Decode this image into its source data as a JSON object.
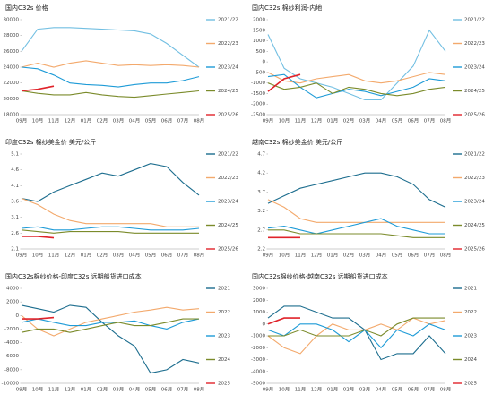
{
  "chart_data": [
    {
      "type": "line",
      "title": "国内C32s 价格",
      "categories": [
        "09月",
        "10月",
        "11月",
        "12月",
        "01月",
        "02月",
        "03月",
        "04月",
        "05月",
        "06月",
        "07月",
        "08月"
      ],
      "ylim": [
        18000,
        30000
      ],
      "yticks": [
        18000,
        20000,
        22000,
        24000,
        26000,
        28000,
        30000
      ],
      "series": [
        {
          "name": "2021/22",
          "color": "#72bfe2",
          "values": [
            26000,
            28800,
            29000,
            29000,
            28900,
            28800,
            28700,
            28600,
            28200,
            27000,
            25500,
            24000
          ]
        },
        {
          "name": "2022/23",
          "color": "#f3a96c",
          "values": [
            24000,
            24500,
            24000,
            24500,
            24800,
            24500,
            24200,
            24300,
            24200,
            24300,
            24200,
            24000
          ]
        },
        {
          "name": "2023/24",
          "color": "#1e9bd7",
          "values": [
            24000,
            23800,
            23000,
            22000,
            21800,
            21700,
            21500,
            21800,
            22000,
            22000,
            22300,
            22800
          ]
        },
        {
          "name": "2024/25",
          "color": "#7b8b2b",
          "values": [
            21000,
            20700,
            20500,
            20500,
            20800,
            20500,
            20300,
            20200,
            20400,
            20600,
            20800,
            21000
          ]
        },
        {
          "name": "2025/26",
          "color": "#e0232a",
          "values": [
            21000,
            21200,
            21600,
            null,
            null,
            null,
            null,
            null,
            null,
            null,
            null,
            null
          ]
        }
      ]
    },
    {
      "type": "line",
      "title": "国内C32s 棉纱利润-内地",
      "categories": [
        "09月",
        "10月",
        "11月",
        "12月",
        "01月",
        "02月",
        "03月",
        "04月",
        "05月",
        "06月",
        "07月",
        "08月"
      ],
      "ylim": [
        -2500,
        2000
      ],
      "yticks": [
        -2500,
        -2000,
        -1500,
        -1000,
        -500,
        0,
        500,
        1000,
        1500,
        2000
      ],
      "series": [
        {
          "name": "2021/22",
          "color": "#72bfe2",
          "values": [
            1300,
            -300,
            -800,
            -1000,
            -1200,
            -1500,
            -1800,
            -1800,
            -1000,
            -200,
            1500,
            500
          ]
        },
        {
          "name": "2022/23",
          "color": "#f3a96c",
          "values": [
            -500,
            -900,
            -1000,
            -800,
            -700,
            -600,
            -900,
            -1000,
            -900,
            -700,
            -500,
            -600
          ]
        },
        {
          "name": "2023/24",
          "color": "#1e9bd7",
          "values": [
            -700,
            -600,
            -1200,
            -1700,
            -1500,
            -1300,
            -1400,
            -1600,
            -1400,
            -1200,
            -800,
            -900
          ]
        },
        {
          "name": "2024/25",
          "color": "#7b8b2b",
          "values": [
            -1000,
            -1300,
            -1200,
            -1000,
            -1500,
            -1200,
            -1300,
            -1500,
            -1600,
            -1500,
            -1300,
            -1200
          ]
        },
        {
          "name": "2025/26",
          "color": "#e0232a",
          "values": [
            -1400,
            -800,
            -600,
            null,
            null,
            null,
            null,
            null,
            null,
            null,
            null,
            null
          ]
        }
      ]
    },
    {
      "type": "line",
      "title": "印度C32s 棉纱美金价  美元/公斤",
      "categories": [
        "09月",
        "10月",
        "11月",
        "12月",
        "01月",
        "02月",
        "03月",
        "04月",
        "05月",
        "06月",
        "07月",
        "08月"
      ],
      "ylim": [
        2.1,
        5.1
      ],
      "yticks": [
        2.1,
        2.6,
        3.1,
        3.6,
        4.1,
        4.6,
        5.1
      ],
      "series": [
        {
          "name": "2021/22",
          "color": "#1c6d8e",
          "values": [
            3.7,
            3.6,
            3.9,
            4.1,
            4.3,
            4.5,
            4.4,
            4.6,
            4.8,
            4.7,
            4.2,
            3.8
          ]
        },
        {
          "name": "2022/23",
          "color": "#f3a96c",
          "values": [
            3.7,
            3.5,
            3.2,
            3.0,
            2.9,
            2.9,
            2.9,
            2.9,
            2.9,
            2.8,
            2.8,
            2.8
          ]
        },
        {
          "name": "2023/24",
          "color": "#1e9bd7",
          "values": [
            2.75,
            2.8,
            2.7,
            2.7,
            2.75,
            2.8,
            2.8,
            2.75,
            2.7,
            2.7,
            2.7,
            2.75
          ]
        },
        {
          "name": "2024/25",
          "color": "#7b8b2b",
          "values": [
            2.7,
            2.65,
            2.6,
            2.65,
            2.65,
            2.65,
            2.65,
            2.6,
            2.6,
            2.6,
            2.6,
            2.6
          ]
        },
        {
          "name": "2025/26",
          "color": "#e0232a",
          "values": [
            2.5,
            2.5,
            2.45,
            null,
            null,
            null,
            null,
            null,
            null,
            null,
            null,
            null
          ]
        }
      ]
    },
    {
      "type": "line",
      "title": "越南C32s 棉纱美金价  美元/公斤",
      "categories": [
        "09月",
        "10月",
        "11月",
        "12月",
        "01月",
        "02月",
        "03月",
        "04月",
        "05月",
        "06月",
        "07月",
        "08月"
      ],
      "ylim": [
        2.2,
        4.7
      ],
      "yticks": [
        2.2,
        2.7,
        3.2,
        3.7,
        4.2,
        4.7
      ],
      "series": [
        {
          "name": "2021/22",
          "color": "#1c6d8e",
          "values": [
            3.4,
            3.6,
            3.8,
            3.9,
            4.0,
            4.1,
            4.2,
            4.2,
            4.1,
            3.9,
            3.5,
            3.3
          ]
        },
        {
          "name": "2022/23",
          "color": "#f3a96c",
          "values": [
            3.5,
            3.3,
            3.0,
            2.9,
            2.9,
            2.9,
            2.9,
            2.9,
            2.9,
            2.9,
            2.9,
            2.9
          ]
        },
        {
          "name": "2023/24",
          "color": "#1e9bd7",
          "values": [
            2.75,
            2.8,
            2.7,
            2.6,
            2.7,
            2.8,
            2.9,
            3.0,
            2.8,
            2.7,
            2.6,
            2.6
          ]
        },
        {
          "name": "2024/25",
          "color": "#7b8b2b",
          "values": [
            2.7,
            2.7,
            2.6,
            2.6,
            2.6,
            2.6,
            2.6,
            2.6,
            2.55,
            2.5,
            2.5,
            2.5
          ]
        },
        {
          "name": "2025/26",
          "color": "#e0232a",
          "values": [
            2.5,
            2.5,
            2.5,
            null,
            null,
            null,
            null,
            null,
            null,
            null,
            null,
            null
          ]
        }
      ]
    },
    {
      "type": "line",
      "title": "国内C32s棉纱价格-印度C32s 远期船货进口成本",
      "categories": [
        "09月",
        "10月",
        "11月",
        "12月",
        "01月",
        "02月",
        "03月",
        "04月",
        "05月",
        "06月",
        "07月",
        "08月"
      ],
      "ylim": [
        -10000,
        4000
      ],
      "yticks": [
        -10000,
        -8000,
        -6000,
        -4000,
        -2000,
        0,
        2000,
        4000
      ],
      "series": [
        {
          "name": "2021",
          "color": "#1c6d8e",
          "values": [
            1500,
            1000,
            500,
            1500,
            1200,
            -1000,
            -3000,
            -4500,
            -8500,
            -8000,
            -6500,
            -7000
          ]
        },
        {
          "name": "2022",
          "color": "#f3a96c",
          "values": [
            0,
            -2000,
            -3000,
            -2000,
            -1000,
            -500,
            0,
            500,
            800,
            1200,
            800,
            1000
          ]
        },
        {
          "name": "2023",
          "color": "#1e9bd7",
          "values": [
            -1000,
            -500,
            -1000,
            -1500,
            -1500,
            -1000,
            -1000,
            -800,
            -1500,
            -2000,
            -1000,
            -500
          ]
        },
        {
          "name": "2024",
          "color": "#7b8b2b",
          "values": [
            -2500,
            -2000,
            -2000,
            -2500,
            -2000,
            -1500,
            -1000,
            -1500,
            -1500,
            -1000,
            -500,
            -500
          ]
        },
        {
          "name": "2025",
          "color": "#e0232a",
          "values": [
            -500,
            -500,
            -300,
            null,
            null,
            null,
            null,
            null,
            null,
            null,
            null,
            null
          ]
        }
      ]
    },
    {
      "type": "line",
      "title": "国内C32s棉纱价格-越南C32s 远期船货进口成本",
      "categories": [
        "09月",
        "10月",
        "11月",
        "12月",
        "01月",
        "02月",
        "03月",
        "04月",
        "05月",
        "06月",
        "07月",
        "08月"
      ],
      "ylim": [
        -5000,
        3000
      ],
      "yticks": [
        -5000,
        -4000,
        -3000,
        -2000,
        -1000,
        0,
        1000,
        2000,
        3000
      ],
      "series": [
        {
          "name": "2021",
          "color": "#1c6d8e",
          "values": [
            500,
            1500,
            1500,
            1000,
            500,
            500,
            -500,
            -3000,
            -2500,
            -2500,
            -1000,
            -2500
          ]
        },
        {
          "name": "2022",
          "color": "#f3a96c",
          "values": [
            -1000,
            -2000,
            -2500,
            -1000,
            0,
            -500,
            -500,
            0,
            -500,
            500,
            0,
            300
          ]
        },
        {
          "name": "2023",
          "color": "#1e9bd7",
          "values": [
            -500,
            -1000,
            0,
            0,
            -500,
            -1500,
            -500,
            -2000,
            -500,
            -1000,
            0,
            -500
          ]
        },
        {
          "name": "2024",
          "color": "#7b8b2b",
          "values": [
            -1000,
            -1000,
            -500,
            -1000,
            -1000,
            -1000,
            -500,
            -1000,
            0,
            500,
            500,
            500
          ]
        },
        {
          "name": "2025",
          "color": "#e0232a",
          "values": [
            0,
            500,
            500,
            null,
            null,
            null,
            null,
            null,
            null,
            null,
            null,
            null
          ]
        }
      ]
    }
  ]
}
